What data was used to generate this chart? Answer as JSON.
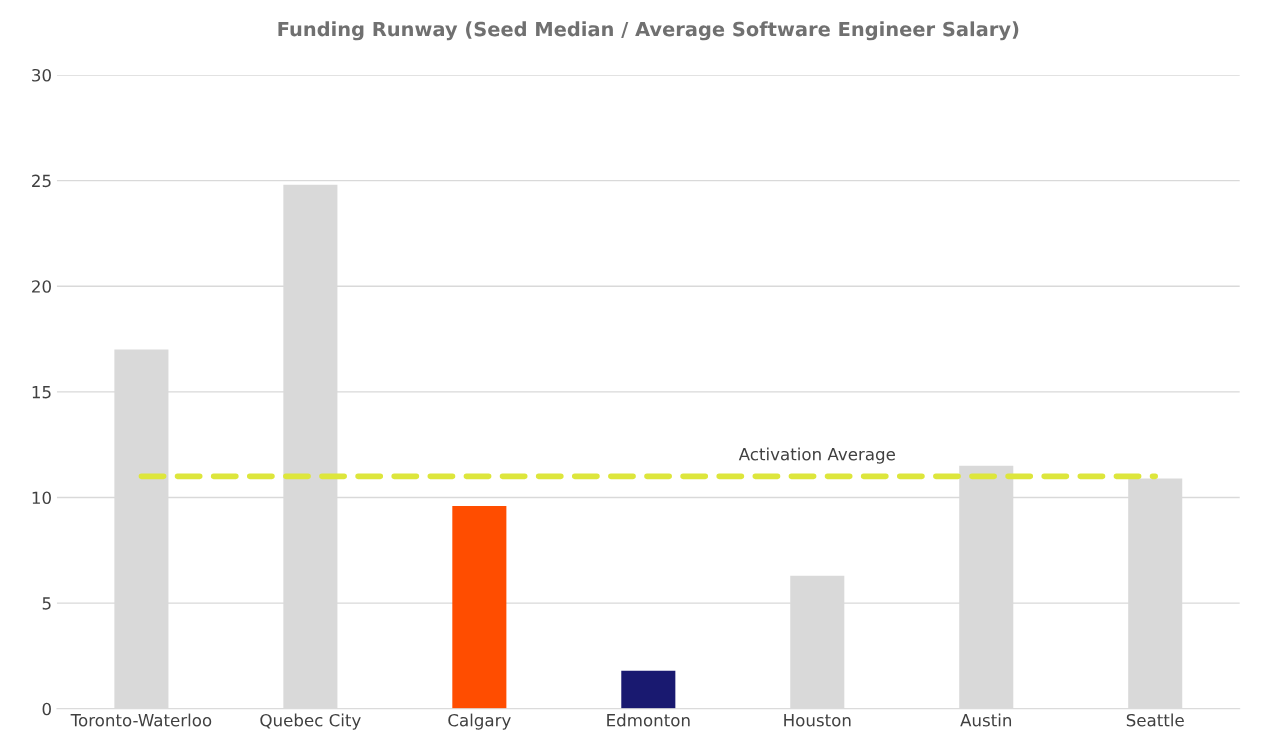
{
  "chart_data": {
    "type": "bar",
    "title": "Funding Runway (Seed Median / Average Software Engineer Salary)",
    "categories": [
      "Toronto-Waterloo",
      "Quebec City",
      "Calgary",
      "Edmonton",
      "Houston",
      "Austin",
      "Seattle"
    ],
    "values": [
      17.0,
      24.8,
      9.6,
      1.8,
      6.3,
      11.5,
      10.9
    ],
    "colors": [
      "#d9d9d9",
      "#d9d9d9",
      "#ff4d00",
      "#191970",
      "#d9d9d9",
      "#d9d9d9",
      "#d9d9d9"
    ],
    "ylim": [
      0,
      30
    ],
    "yticks": [
      0,
      5,
      10,
      15,
      20,
      25,
      30
    ],
    "grid": "y",
    "ref_lines": [
      {
        "axis": "y",
        "value": 11.0,
        "label": "Activation Average",
        "color": "#dde63c",
        "line_style": "dashed"
      }
    ]
  }
}
